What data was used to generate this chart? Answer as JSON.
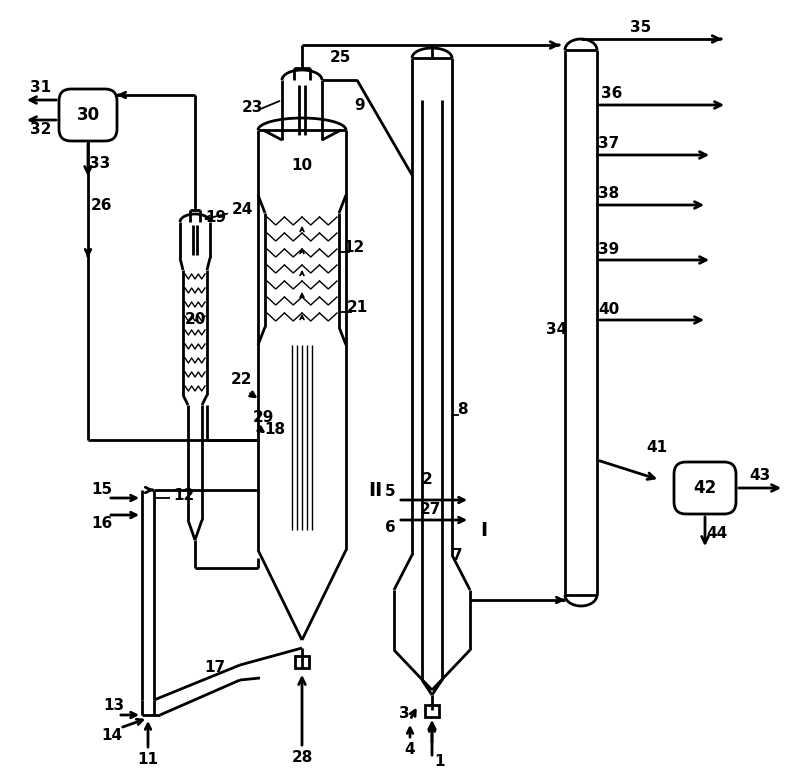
{
  "bg": "#ffffff",
  "lc": "#000000",
  "lw": 2.0,
  "lw_thin": 1.3,
  "fs": 11,
  "fw": "bold",
  "fig_w": 8.0,
  "fig_h": 7.81,
  "dpi": 100
}
